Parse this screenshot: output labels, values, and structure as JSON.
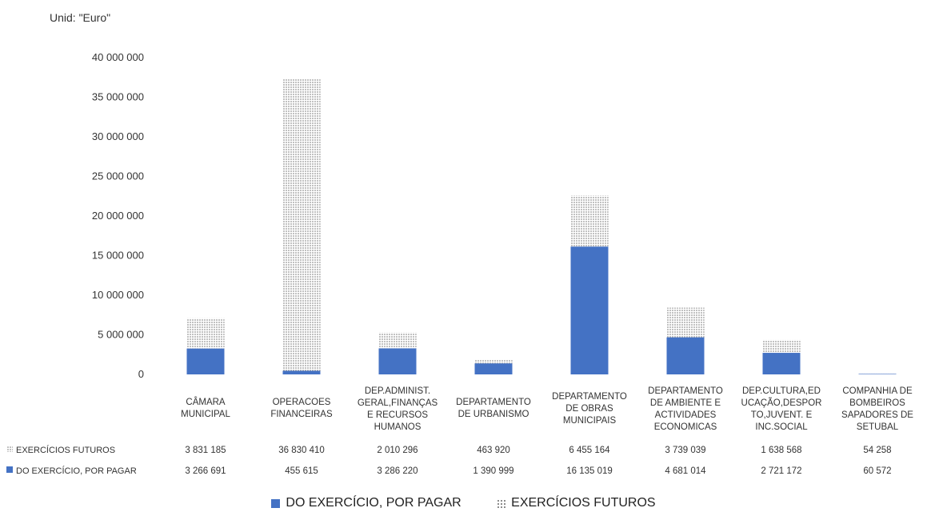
{
  "unit_label": "Unid: \"Euro\"",
  "colors": {
    "primary": "#4472c4",
    "dots": "#6b6b6b"
  },
  "chart_data": {
    "type": "bar",
    "stacked": true,
    "unit": "Unid: \"Euro\"",
    "categories": [
      [
        "CÂMARA",
        "MUNICIPAL"
      ],
      [
        "OPERACOES",
        "FINANCEIRAS"
      ],
      [
        "DEP.ADMINIST.",
        "GERAL,FINANÇAS",
        "E RECURSOS",
        "HUMANOS"
      ],
      [
        "DEPARTAMENTO",
        "DE URBANISMO"
      ],
      [
        "DEPARTAMENTO",
        "DE OBRAS",
        "MUNICIPAIS"
      ],
      [
        "DEPARTAMENTO",
        "DE AMBIENTE E",
        "ACTIVIDADES",
        "ECONOMICAS"
      ],
      [
        "DEP.CULTURA,ED",
        "UCAÇÃO,DESPOR",
        "TO,JUVENT. E",
        "INC.SOCIAL"
      ],
      [
        "COMPANHIA DE",
        "BOMBEIROS",
        "SAPADORES DE",
        "SETUBAL"
      ]
    ],
    "series": [
      {
        "name": "DO EXERCÍCIO, POR PAGAR",
        "legend_label": "DO EXERCÍCIO, POR PAGAR",
        "style": "solid",
        "values": [
          3266691,
          455615,
          3286220,
          1390999,
          16135019,
          4681014,
          2721172,
          60572
        ],
        "labels": [
          "3 266 691",
          "455 615",
          "3 286 220",
          "1 390 999",
          "16 135 019",
          "4 681 014",
          "2 721 172",
          "60 572"
        ]
      },
      {
        "name": "EXERCÍCIOS FUTUROS",
        "legend_label": "EXERCÍCIOS FUTUROS",
        "style": "dotted",
        "values": [
          3831185,
          36830410,
          2010296,
          463920,
          6455164,
          3739039,
          1638568,
          54258
        ],
        "labels": [
          "3 831 185",
          "36 830 410",
          "2 010 296",
          "463 920",
          "6 455 164",
          "3 739 039",
          "1 638 568",
          "54 258"
        ]
      }
    ],
    "table_rows": [
      {
        "series": 1,
        "label": "EXERCÍCIOS FUTUROS"
      },
      {
        "series": 0,
        "label": "DO EXERCÍCIO, POR PAGAR"
      }
    ],
    "yticks": [
      0,
      5000000,
      10000000,
      15000000,
      20000000,
      25000000,
      30000000,
      35000000,
      40000000
    ],
    "ytick_labels": [
      "0",
      "5 000 000",
      "10 000 000",
      "15 000 000",
      "20 000 000",
      "25 000 000",
      "30 000 000",
      "35 000 000",
      "40 000 000"
    ],
    "ylim": [
      0,
      40000000
    ],
    "grid": false,
    "legend_position": "bottom"
  }
}
